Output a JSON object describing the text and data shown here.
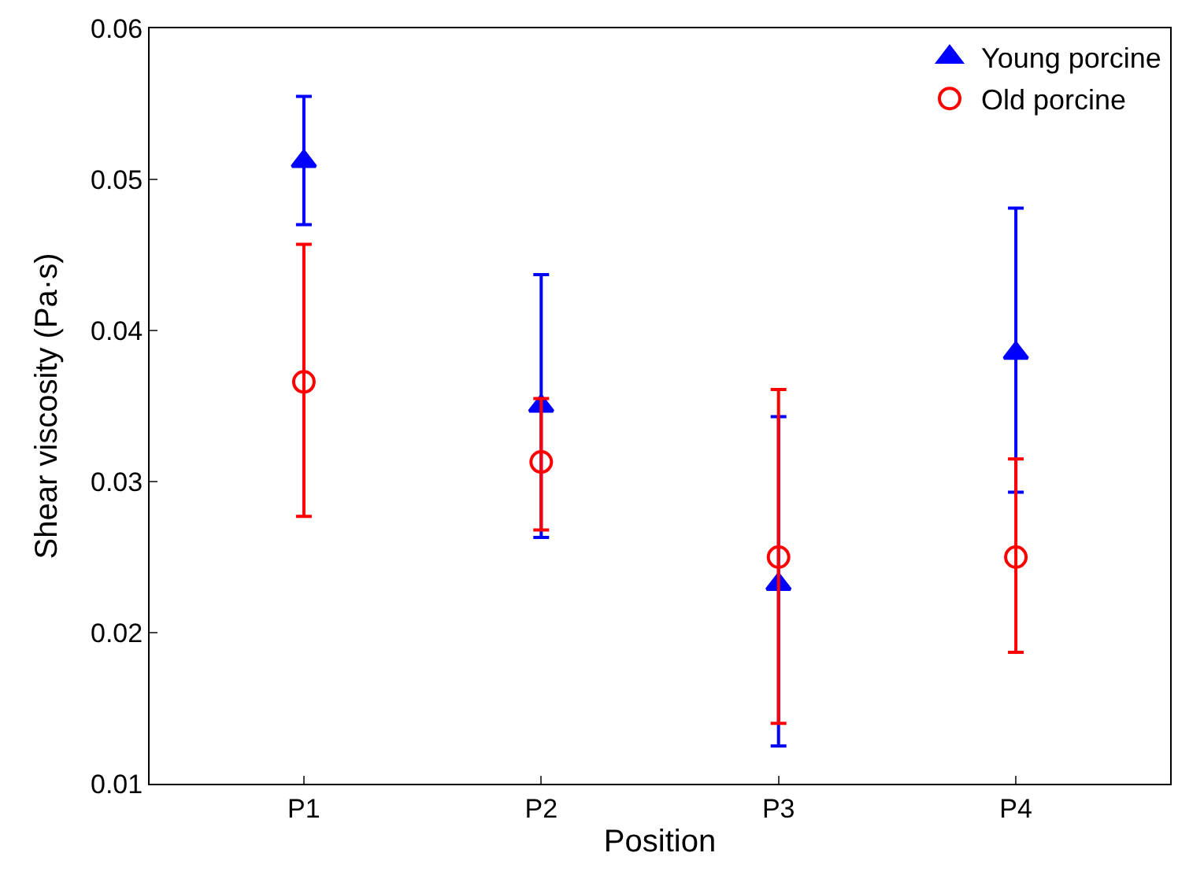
{
  "chart_data": {
    "type": "scatter",
    "xlabel": "Position",
    "ylabel": "Shear viscosity (Pa·s)",
    "categories": [
      "P1",
      "P2",
      "P3",
      "P4"
    ],
    "series": [
      {
        "name": "Young porcine",
        "color": "#0000ff",
        "marker": "triangle",
        "values": [
          0.0512,
          0.035,
          0.0232,
          0.0385
        ],
        "errors": [
          [
            0.047,
            0.0555
          ],
          [
            0.0263,
            0.0437
          ],
          [
            0.0125,
            0.0343
          ],
          [
            0.0293,
            0.0481
          ]
        ]
      },
      {
        "name": "Old porcine",
        "color": "#ff0000",
        "marker": "circle",
        "values": [
          0.0366,
          0.0313,
          0.025,
          0.025
        ],
        "errors": [
          [
            0.0277,
            0.0457
          ],
          [
            0.0268,
            0.0355
          ],
          [
            0.014,
            0.0361
          ],
          [
            0.0187,
            0.0315
          ]
        ]
      }
    ],
    "ylim": [
      0.01,
      0.06
    ],
    "yticks": [
      0.01,
      0.02,
      0.03,
      0.04,
      0.05,
      0.06
    ],
    "legend": "top right"
  }
}
